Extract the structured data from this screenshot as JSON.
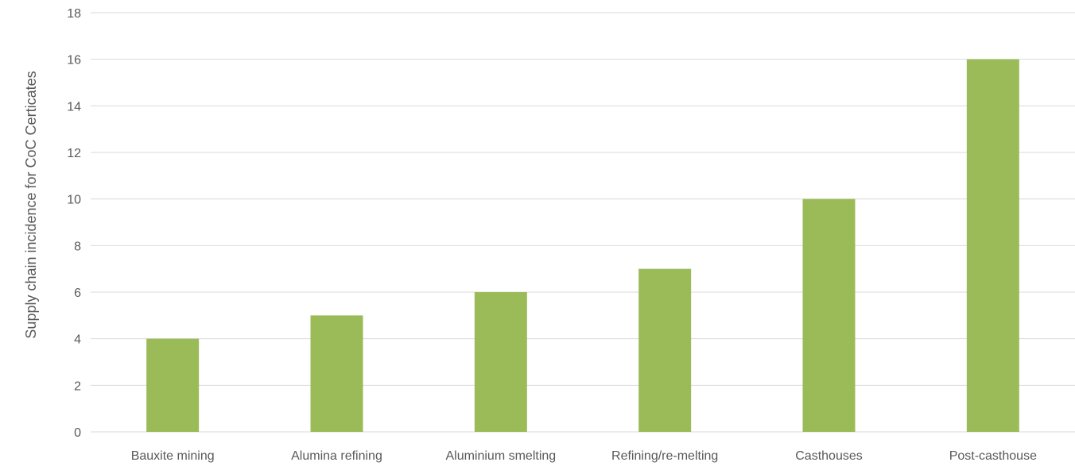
{
  "chart_data": {
    "type": "bar",
    "title": "",
    "xlabel": "",
    "ylabel": "Supply chain incidence for CoC Certicates",
    "categories": [
      "Bauxite mining",
      "Alumina refining",
      "Aluminium smelting",
      "Refining/re-melting",
      "Casthouses",
      "Post-casthouse"
    ],
    "values": [
      4,
      5,
      6,
      7,
      10,
      16
    ],
    "ylim": [
      0,
      18
    ],
    "yticks": [
      "0",
      "2",
      "4",
      "6",
      "8",
      "10",
      "12",
      "14",
      "16",
      "18"
    ],
    "grid": true,
    "legend": "none",
    "colors": {
      "bar": "#9bbb59",
      "grid": "#d9d9d9",
      "text": "#595959"
    }
  }
}
